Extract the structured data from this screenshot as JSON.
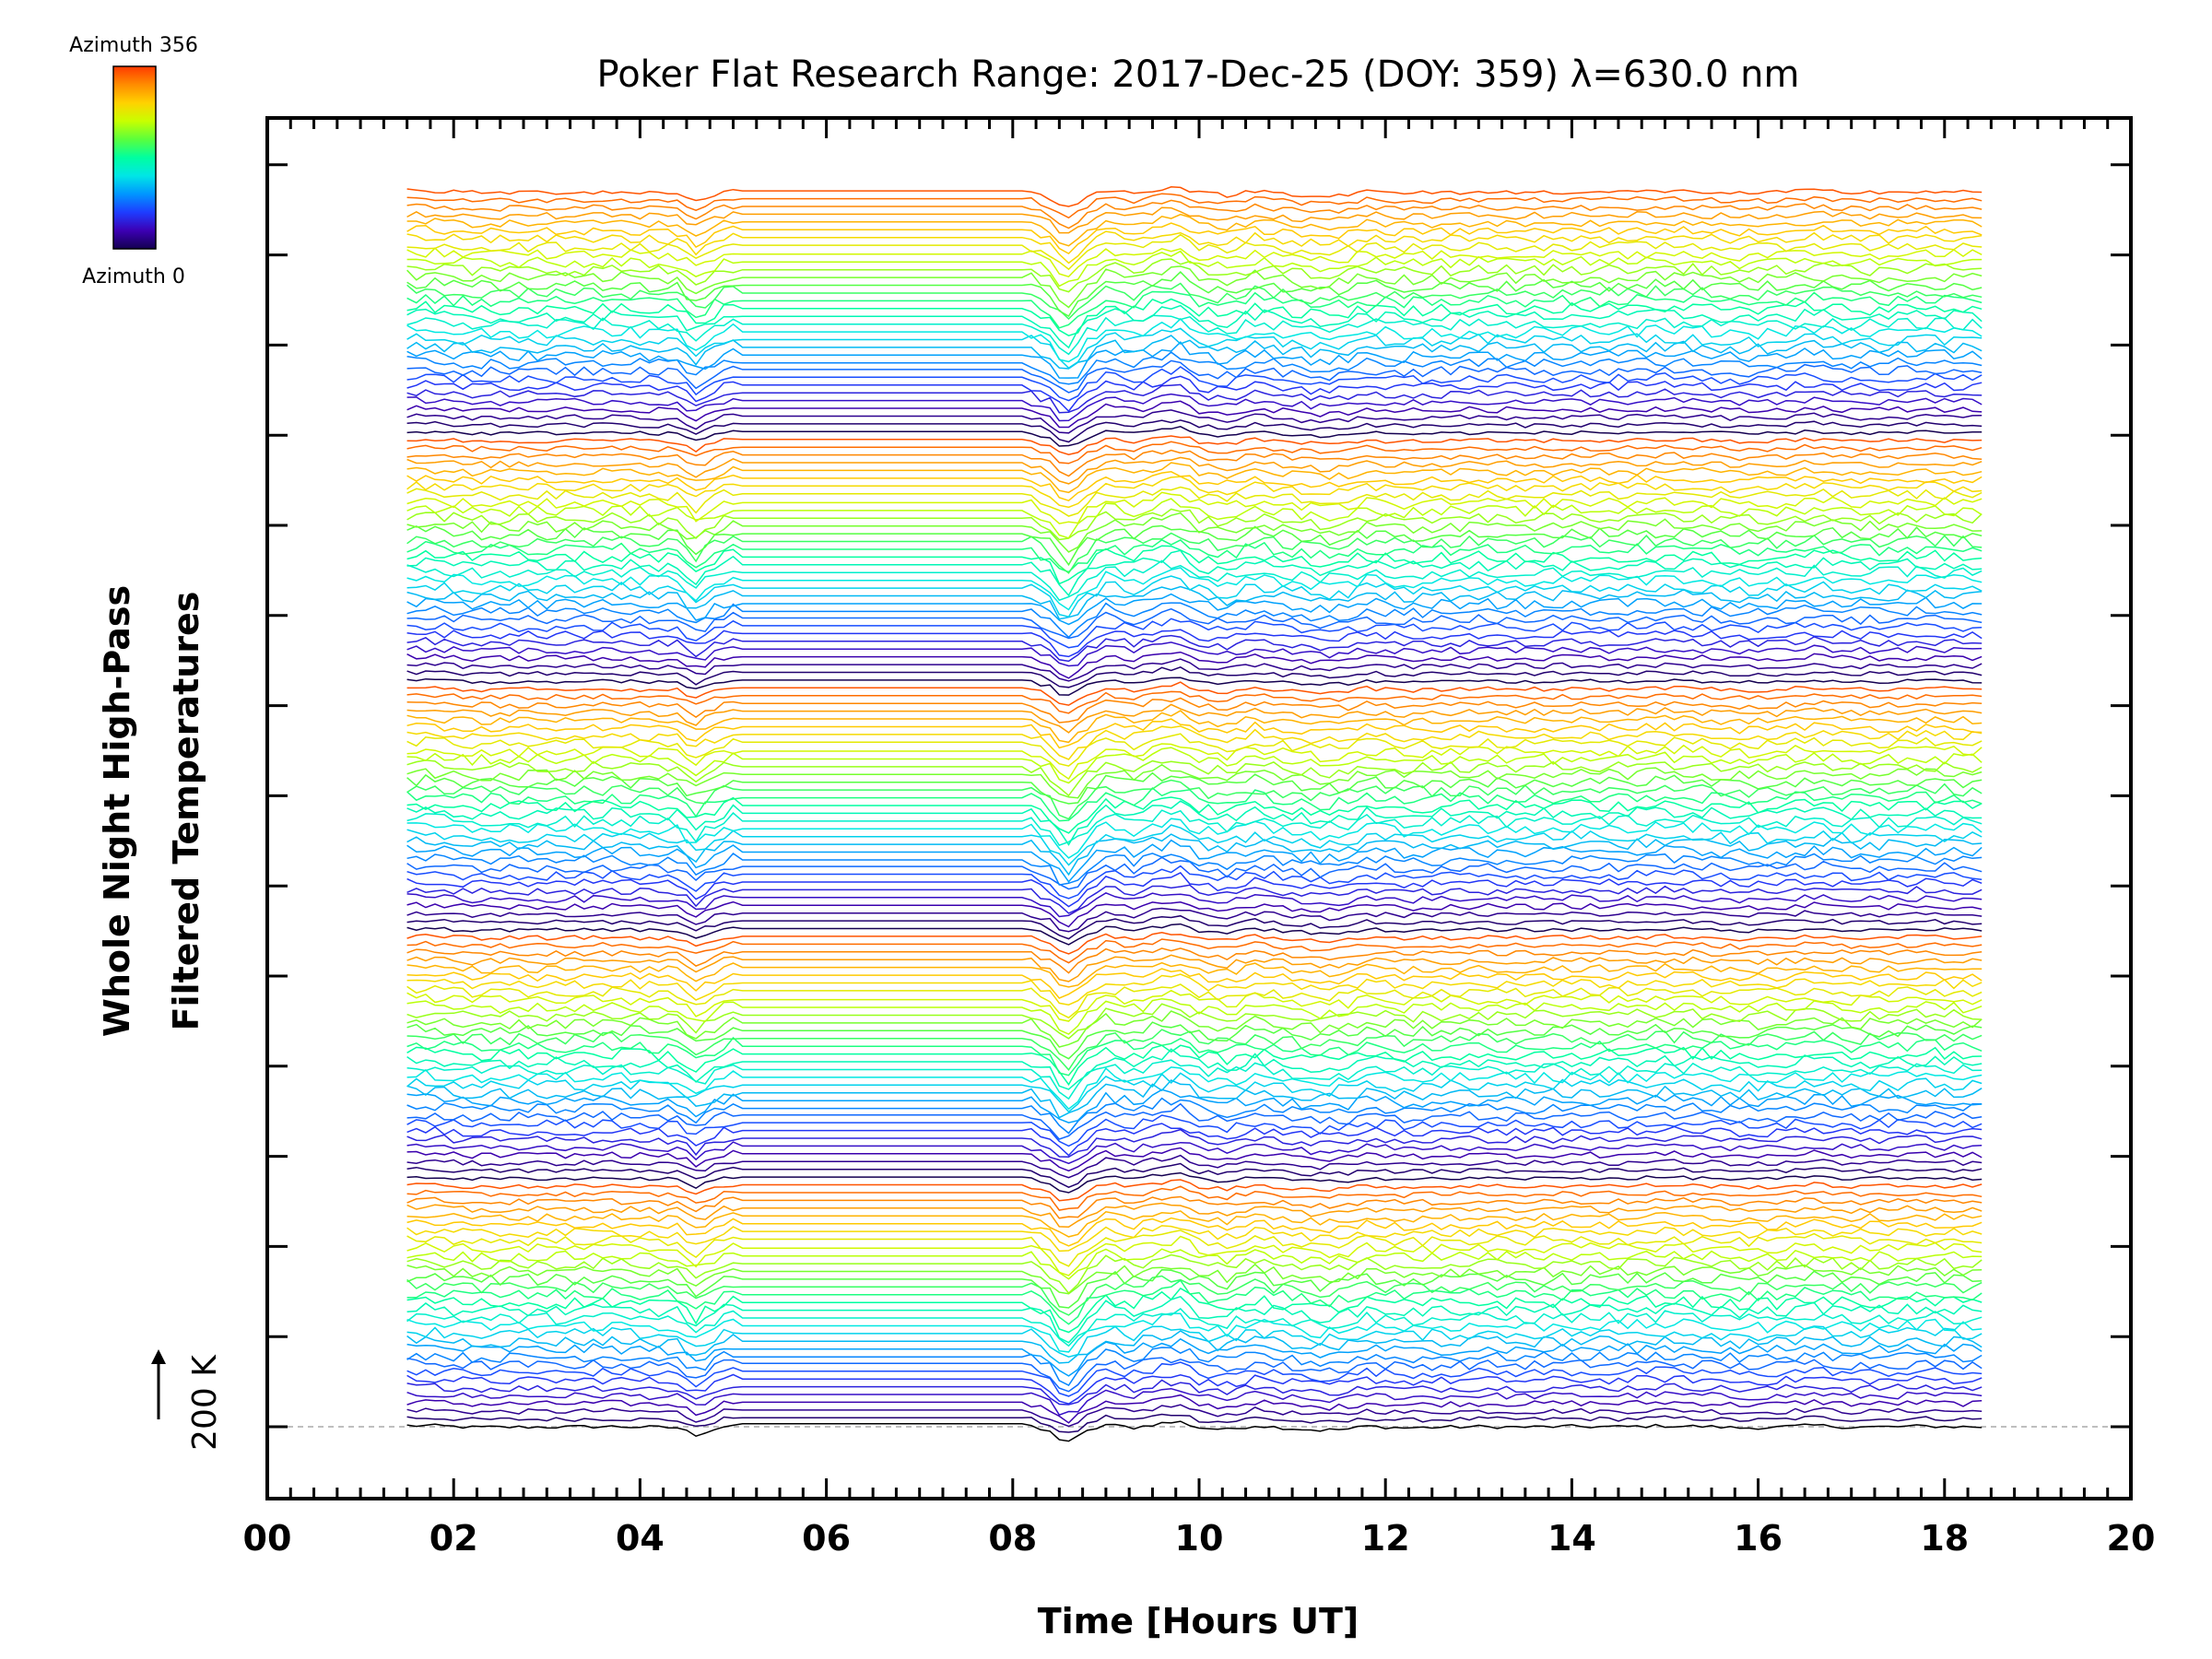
{
  "chart_data": {
    "type": "line",
    "title": "Poker Flat Research Range: 2017-Dec-25 (DOY: 359) λ=630.0 nm",
    "xlabel": "Time [Hours UT]",
    "ylabel_line1": "Whole Night High-Pass",
    "ylabel_line2": "Filtered Temperatures",
    "scale_label": "200 K",
    "colorbar": {
      "top_label": "Azimuth 356",
      "bottom_label": "Azimuth 0",
      "colors": [
        "#ff3a00",
        "#ff8c00",
        "#ffd200",
        "#c8ff00",
        "#5aff3c",
        "#00ffa0",
        "#00e6e6",
        "#0096ff",
        "#1e3cff",
        "#3c00b4",
        "#140050"
      ]
    },
    "xlim": [
      0,
      20
    ],
    "x_tick_labels": [
      "00",
      "02",
      "04",
      "06",
      "08",
      "10",
      "12",
      "14",
      "16",
      "18",
      "20"
    ],
    "grid": false,
    "legend": "none",
    "baseline_series": {
      "name": "",
      "x": [
        1.5,
        1.8,
        2.2,
        2.7,
        3.2,
        3.7,
        4.1,
        4.4,
        4.6,
        4.75,
        4.9,
        5.0,
        8.1,
        8.2,
        8.4,
        8.55,
        8.65,
        8.8,
        9.0,
        9.3,
        9.6,
        9.8,
        10.0,
        10.3,
        10.6,
        11.0,
        11.3,
        11.6,
        11.8,
        12.2,
        12.6,
        13.0,
        13.5,
        14.0,
        14.5,
        15.0,
        15.5,
        15.8,
        16.2,
        16.6,
        17.0,
        17.4,
        17.8,
        18.1,
        18.4
      ],
      "y": [
        10,
        8,
        -5,
        -3,
        -2,
        2,
        -4,
        -8,
        -70,
        -30,
        2,
        12,
        8,
        -4,
        -45,
        -130,
        -110,
        -40,
        18,
        -8,
        30,
        40,
        -8,
        -25,
        10,
        -15,
        -30,
        -20,
        5,
        -10,
        -4,
        0,
        -3,
        2,
        -1,
        8,
        0,
        -10,
        -5,
        12,
        -4,
        -1,
        5,
        0,
        -2
      ]
    },
    "stack_note_series_count": 160
  }
}
